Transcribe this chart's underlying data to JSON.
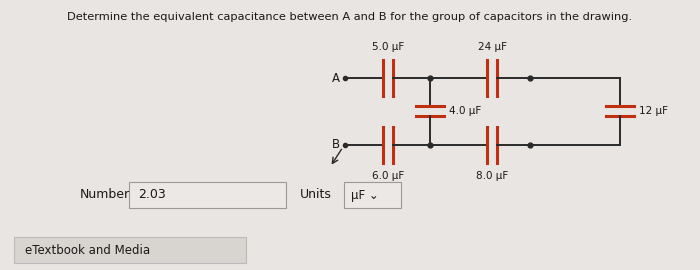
{
  "title": "Determine the equivalent capacitance between A and B for the group of capacitors in the drawing.",
  "bg_color": "#e8e5e2",
  "panel_color": "#e0ddd9",
  "text_color": "#1a1a1a",
  "circuit_color": "#2a2a2a",
  "cap_color": "#c03010",
  "number_label": "Number",
  "number_value": "2.03",
  "units_label": "Units",
  "units_value": "μF",
  "etextbook_label": "eTextbook and Media",
  "cap_labels": {
    "top_left": "5.0 μF",
    "top_right": "24 μF",
    "mid_left": "4.0 μF",
    "mid_right": "12 μF",
    "bot_left": "6.0 μF",
    "bot_right": "8.0 μF"
  }
}
